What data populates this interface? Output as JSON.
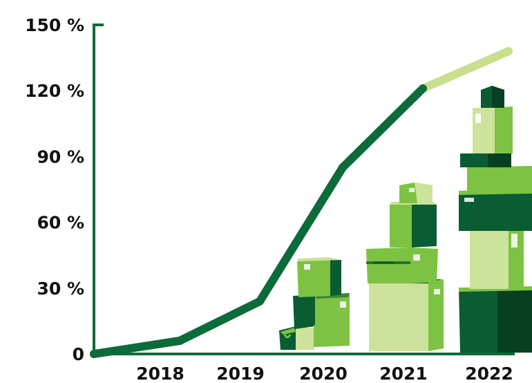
{
  "chart_data": {
    "type": "line",
    "title": "",
    "xlabel": "",
    "ylabel": "",
    "ylim": [
      0,
      150
    ],
    "y_ticks": [
      "0",
      "30 %",
      "60 %",
      "90 %",
      "120 %",
      "150 %"
    ],
    "y_tick_values": [
      0,
      30,
      60,
      90,
      120,
      150
    ],
    "categories": [
      "2018",
      "2019",
      "2020",
      "2021",
      "2022"
    ],
    "series": [
      {
        "x": [
          2017,
          2018,
          2019,
          2020,
          2021,
          2022
        ],
        "values": [
          0,
          6,
          24,
          85,
          121,
          138
        ],
        "segments": [
          {
            "from": 2017,
            "to": 2021,
            "style": "actual"
          },
          {
            "from": 2021,
            "to": 2022,
            "style": "projected"
          }
        ]
      }
    ],
    "grid": false,
    "legend": "none"
  },
  "colors": {
    "axis": "#0c6b3a",
    "line_actual": "#0c6b3a",
    "line_projected": "#c9df8e",
    "box_dark": "#0a5c32",
    "box_medium": "#7dc242",
    "box_light": "#cde29a",
    "box_deep": "#073f22"
  },
  "decoration": {
    "box_stacks": [
      "2020",
      "2021",
      "2022"
    ],
    "icon": "cardboard-box-stack-illustration"
  }
}
